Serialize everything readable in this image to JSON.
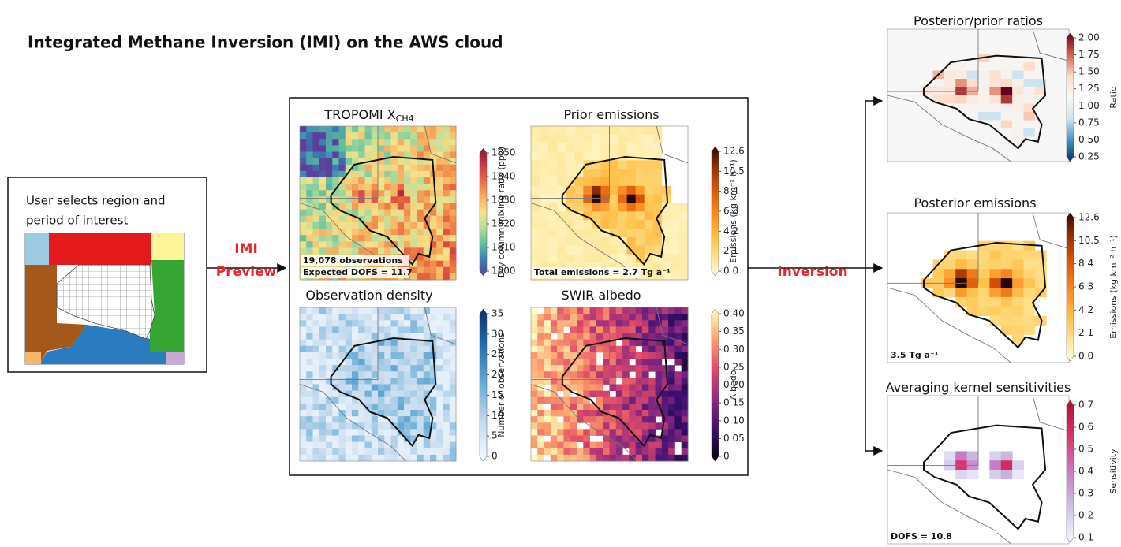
{
  "title": "Integrated Methane Inversion (IMI) on the AWS cloud",
  "selection": {
    "lines": [
      "User selects region and",
      "period of interest"
    ]
  },
  "preview_label": [
    "IMI",
    "Preview"
  ],
  "inversion_label": "Inversion",
  "panels": [
    {
      "title": "TROPOMI X",
      "title_sub": "CH4",
      "colorbar": {
        "ticks": [
          "1850",
          "1840",
          "1830",
          "1820",
          "1810",
          "1800"
        ],
        "label": "Dry column mixing ratio (ppb)"
      },
      "annotations": [
        "19,078 observations",
        "Expected DOFS = 11.7"
      ]
    },
    {
      "title": "Prior emissions",
      "colorbar": {
        "ticks": [
          "12.6",
          "10.5",
          "8.4",
          "6.3",
          "4.2",
          "2.1",
          "0.0"
        ],
        "label": "Emissions (kg km⁻² h⁻¹)"
      },
      "annotations": [
        "Total emissions = 2.7 Tg a⁻¹"
      ]
    },
    {
      "title": "Observation density",
      "colorbar": {
        "ticks": [
          "35",
          "30",
          "25",
          "20",
          "15",
          "10",
          "5",
          "0"
        ],
        "label": "Number of observations"
      }
    },
    {
      "title": "SWIR albedo",
      "colorbar": {
        "ticks": [
          "0.40",
          "0.35",
          "0.30",
          "0.25",
          "0.20",
          "0.15",
          "0.10",
          "0.05",
          "0"
        ],
        "label": "Albedo"
      }
    },
    {
      "title": "Posterior/prior ratios",
      "colorbar": {
        "ticks": [
          "2.00",
          "1.75",
          "1.50",
          "1.25",
          "1.00",
          "0.75",
          "0.50",
          "0.25"
        ],
        "label": "Ratio"
      }
    },
    {
      "title": "Posterior emissions",
      "colorbar": {
        "ticks": [
          "12.6",
          "10.5",
          "8.4",
          "6.3",
          "4.2",
          "2.1",
          "0.0"
        ],
        "label": "Emissions (kg km⁻² h⁻¹)"
      },
      "annotations": [
        "3.5 Tg a⁻¹"
      ]
    },
    {
      "title": "Averaging kernel sensitivities",
      "colorbar": {
        "ticks": [
          "0.7",
          "0.6",
          "0.5",
          "0.4",
          "0.3",
          "0.2",
          "0.1"
        ],
        "label": "Sensitivity"
      },
      "annotations": [
        "DOFS = 10.8"
      ]
    }
  ]
}
